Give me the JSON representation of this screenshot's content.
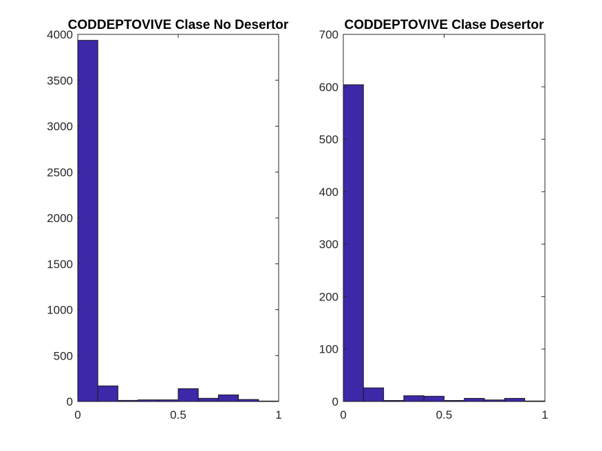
{
  "chart_data": [
    {
      "type": "bar",
      "title": "CODDEPTOVIVE Clase No Desertor",
      "xlabel": "",
      "ylabel": "",
      "xlim": [
        0,
        1
      ],
      "ylim": [
        0,
        4000
      ],
      "x_ticks": [
        0,
        0.5,
        1
      ],
      "x_tick_labels": [
        "0",
        "0.5",
        "1"
      ],
      "y_ticks": [
        0,
        500,
        1000,
        1500,
        2000,
        2500,
        3000,
        3500,
        4000
      ],
      "y_tick_labels": [
        "0",
        "500",
        "1000",
        "1500",
        "2000",
        "2500",
        "3000",
        "3500",
        "4000"
      ],
      "bin_edges": [
        0,
        0.1,
        0.2,
        0.3,
        0.4,
        0.5,
        0.6,
        0.7,
        0.8,
        0.9,
        1.0
      ],
      "values": [
        3935,
        170,
        12,
        18,
        18,
        140,
        35,
        72,
        22,
        5
      ],
      "bar_color": "#3d29a8",
      "grid": false
    },
    {
      "type": "bar",
      "title": "CODDEPTOVIVE Clase Desertor",
      "xlabel": "",
      "ylabel": "",
      "xlim": [
        0,
        1
      ],
      "ylim": [
        0,
        700
      ],
      "x_ticks": [
        0,
        0.5,
        1
      ],
      "x_tick_labels": [
        "0",
        "0.5",
        "1"
      ],
      "y_ticks": [
        0,
        100,
        200,
        300,
        400,
        500,
        600,
        700
      ],
      "y_tick_labels": [
        "0",
        "100",
        "200",
        "300",
        "400",
        "500",
        "600",
        "700"
      ],
      "bin_edges": [
        0,
        0.1,
        0.2,
        0.3,
        0.4,
        0.5,
        0.6,
        0.7,
        0.8,
        0.9,
        1.0
      ],
      "values": [
        604,
        26,
        2,
        11,
        10,
        2,
        6,
        3,
        6,
        1
      ],
      "bar_color": "#3d29a8",
      "grid": false
    }
  ]
}
